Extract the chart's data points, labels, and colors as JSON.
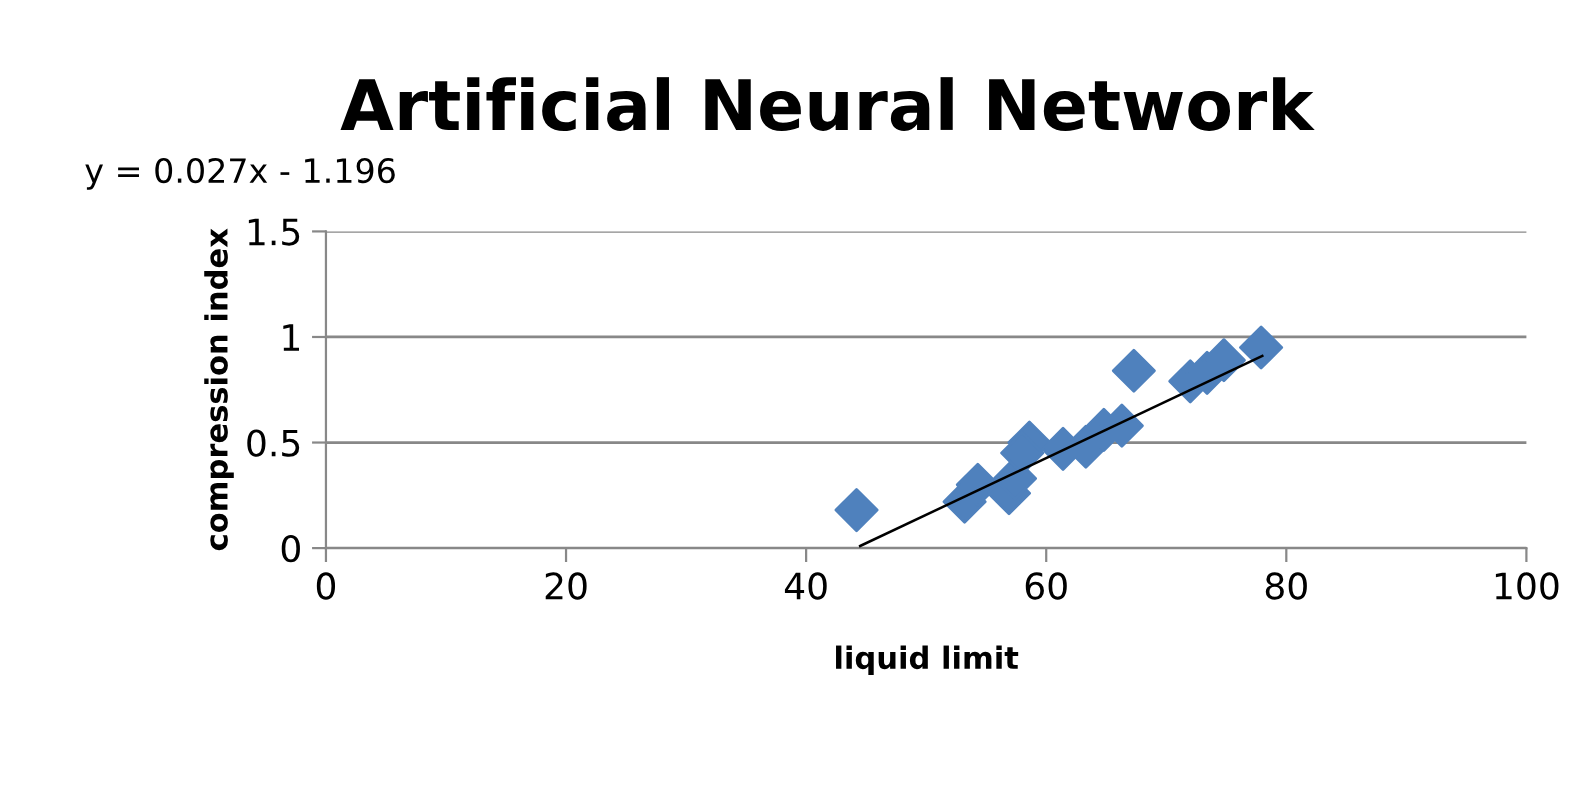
{
  "chart_data": {
    "type": "scatter",
    "title": "Artificial Neural Network",
    "xlabel": "liquid limit",
    "ylabel": "compression index",
    "annotations": [
      "y = 0.027x - 1.196"
    ],
    "xlim": [
      0,
      100
    ],
    "xticks": [
      0,
      20,
      40,
      60,
      80,
      100
    ],
    "ylim": [
      0,
      1.5
    ],
    "yticks": [
      0,
      0.5,
      1,
      1.5
    ],
    "grid": "y",
    "series": [
      {
        "marker": "diamond",
        "color": "#4f81bd",
        "x": [
          44.2,
          53.2,
          54.3,
          56.9,
          57.4,
          58.6,
          58.0,
          61.4,
          63.3,
          64.8,
          66.3,
          67.3,
          72.0,
          73.4,
          74.8,
          77.9
        ],
        "values": [
          0.18,
          0.22,
          0.3,
          0.26,
          0.33,
          0.5,
          0.45,
          0.47,
          0.48,
          0.56,
          0.58,
          0.84,
          0.79,
          0.83,
          0.89,
          0.95
        ]
      },
      {
        "type": "line",
        "marker": "none",
        "color": "#000000",
        "x": [
          44.5,
          78
        ],
        "values": [
          0.01,
          0.91
        ]
      }
    ]
  }
}
